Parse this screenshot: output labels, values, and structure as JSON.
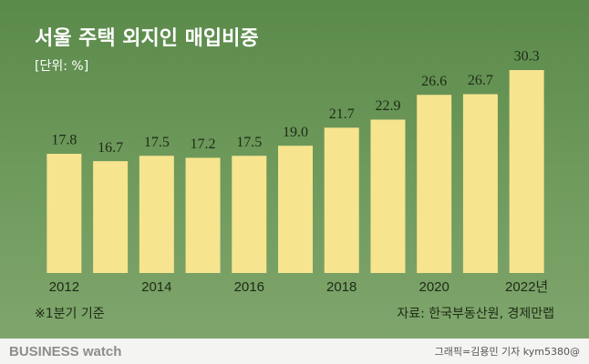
{
  "chart_data": {
    "type": "bar",
    "title": "서울 주택 외지인 매입비중",
    "subtitle": "[단위: %]",
    "categories": [
      "2012",
      null,
      "2014",
      null,
      "2016",
      null,
      "2018",
      null,
      "2020",
      null,
      "2022년"
    ],
    "values": [
      17.8,
      16.7,
      17.5,
      17.2,
      17.5,
      19.0,
      21.7,
      22.9,
      26.6,
      26.7,
      30.3
    ],
    "value_labels": [
      "17.8",
      "16.7",
      "17.5",
      "17.2",
      "17.5",
      "19.0",
      "21.7",
      "22.9",
      "26.6",
      "26.7",
      "30.3"
    ],
    "color": "#f7e48f",
    "annotations": [
      "※1분기 기준",
      "자료: 한국부동산원, 경제만랩"
    ],
    "logo": "BUSINESS watch",
    "credit": "그래픽=김용민 기자 kym5380@"
  }
}
